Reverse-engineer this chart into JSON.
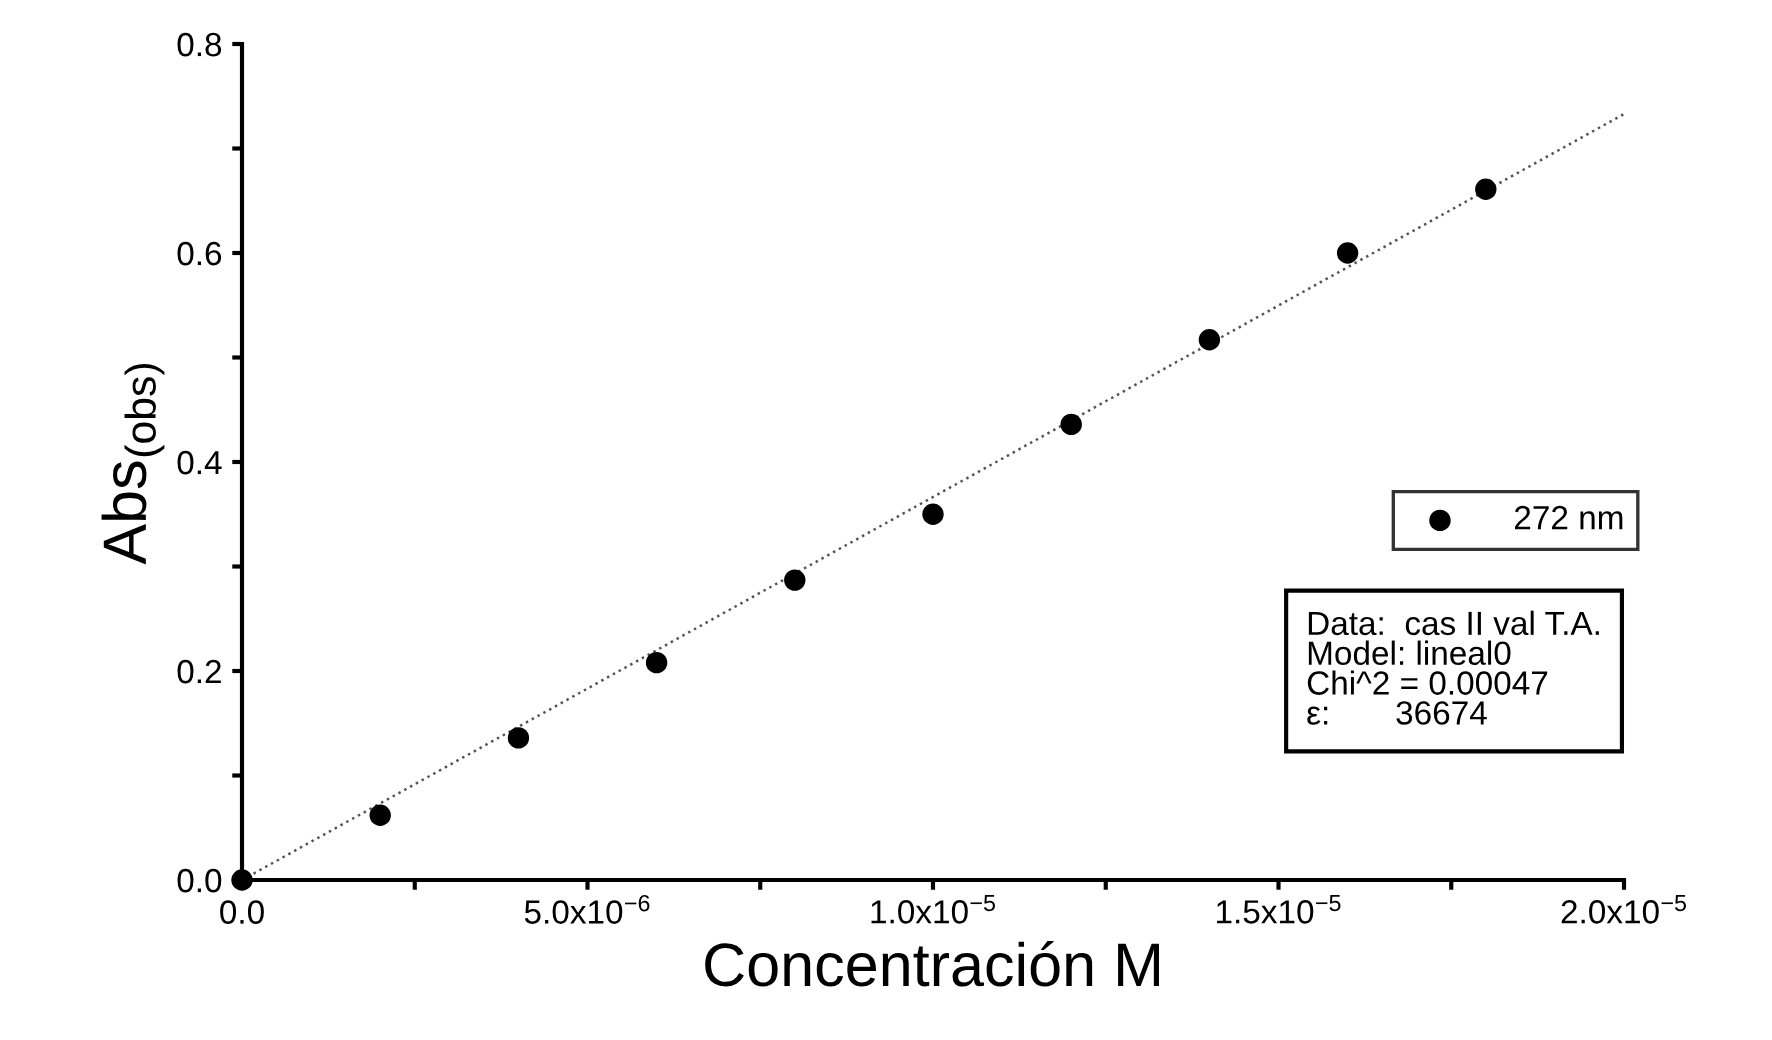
{
  "chart_data": {
    "type": "scatter",
    "xlabel": "Concentración M",
    "ylabel": "Abs$_{(obs)}$",
    "series": [
      {
        "name": "272 nm",
        "color": "#000000",
        "marker": "circle",
        "x": [
          0,
          2e-06,
          4e-06,
          6e-06,
          8e-06,
          1e-05,
          1.2e-05,
          1.4e-05,
          1.6e-05,
          1.8e-05
        ],
        "values": [
          0,
          0.062,
          0.136,
          0.208,
          0.287,
          0.35,
          0.436,
          0.517,
          0.6,
          0.661
        ]
      },
      {
        "type": "line",
        "color": "#555555",
        "line_style": "dotted",
        "x": [
          0,
          2e-05
        ],
        "values": [
          0,
          0.733
        ]
      }
    ],
    "xlim": [
      0,
      2e-05
    ],
    "ylim": [
      0,
      0.8
    ],
    "xticks": [
      {
        "value": 0,
        "label": "0.0"
      },
      {
        "value": 2.5e-06,
        "label": null
      },
      {
        "value": 5e-06,
        "label": "5.0x10$^{−6}$"
      },
      {
        "value": 7.5e-06,
        "label": null
      },
      {
        "value": 1e-05,
        "label": "1.0x10$^{−5}$"
      },
      {
        "value": 1.25e-05,
        "label": null
      },
      {
        "value": 1.5e-05,
        "label": "1.5x10$^{−5}$"
      },
      {
        "value": 1.75e-05,
        "label": null
      },
      {
        "value": 2e-05,
        "label": "2.0x10$^{−5}$"
      }
    ],
    "yticks": [
      {
        "value": 0,
        "label": "0.0"
      },
      {
        "value": 0.1,
        "label": null
      },
      {
        "value": 0.2,
        "label": "0.2"
      },
      {
        "value": 0.3,
        "label": null
      },
      {
        "value": 0.4,
        "label": "0.4"
      },
      {
        "value": 0.5,
        "label": null
      },
      {
        "value": 0.6,
        "label": "0.6"
      },
      {
        "value": 0.7,
        "label": null
      },
      {
        "value": 0.8,
        "label": "0.8"
      }
    ],
    "legend": "right",
    "grid": false,
    "annotations": [
      "Data:  cas II val T.A.\nModel: lineal0\nChi^2 = 0.00047\nε:       36674"
    ]
  }
}
